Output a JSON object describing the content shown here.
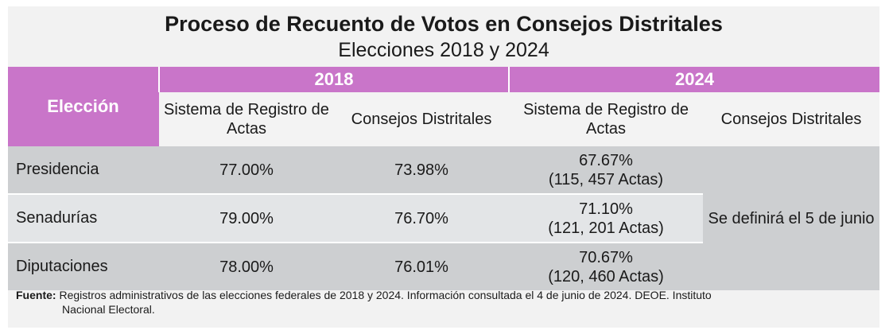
{
  "title": "Proceso de Recuento de Votos en Consejos Distritales",
  "subtitle": "Elecciones 2018 y 2024",
  "header": {
    "eleccion": "Elección",
    "year_2018": "2018",
    "year_2024": "2024",
    "sra": "Sistema de Registro de Actas",
    "cd": "Consejos Distritales"
  },
  "rows": [
    {
      "label": "Presidencia",
      "sra_2018": "77.00%",
      "cd_2018": "73.98%",
      "sra_2024_pct": "67.67%",
      "sra_2024_actas": "(115, 457 Actas)"
    },
    {
      "label": "Senadurías",
      "sra_2018": "79.00%",
      "cd_2018": "76.70%",
      "sra_2024_pct": "71.10%",
      "sra_2024_actas": "(121, 201 Actas)"
    },
    {
      "label": "Diputaciones",
      "sra_2018": "78.00%",
      "cd_2018": "76.01%",
      "sra_2024_pct": "70.67%",
      "sra_2024_actas": "(120, 460 Actas)"
    }
  ],
  "cd_2024_note": "Se definirá el 5 de junio",
  "footer": {
    "label": "Fuente:",
    "text_line1": "Registros administrativos de las elecciones federales de 2018 y 2024. Información consultada el 4 de junio de 2024. DEOE. Instituto",
    "text_line2": "Nacional Electoral."
  },
  "colors": {
    "header_purple": "#c975c9",
    "row_dark": "#cdcfd1",
    "row_light": "#e3e5e7"
  }
}
